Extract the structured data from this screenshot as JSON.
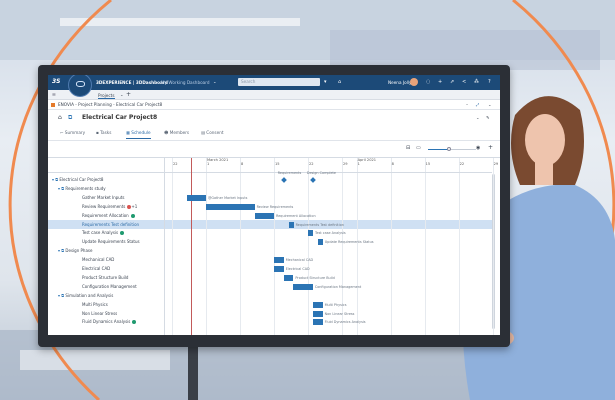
{
  "app": {
    "brand": "3DEXPERIENCE | 3DDashboard",
    "dashboard": "My Working Dashboard",
    "search_placeholder": "Search",
    "user": "Neena Jolly",
    "tab": "Projects",
    "breadcrumb": "ENOVIA - Project Planning - Electrical Car Project8",
    "title": "Electrical Car Project8",
    "tabs": [
      "Summary",
      "Tasks",
      "Schedule",
      "Members",
      "Consent"
    ],
    "active_tab": "Schedule",
    "accent": "#1c4a78",
    "bar_color": "#2b74b4"
  },
  "gantt": {
    "months": [
      {
        "label": "March 2021",
        "date": "2021-03-01"
      },
      {
        "label": "April 2021",
        "date": "2021-04-01"
      }
    ],
    "ticks": [
      {
        "label": "22",
        "date": "2021-02-22"
      },
      {
        "label": "1",
        "date": "2021-03-01"
      },
      {
        "label": "8",
        "date": "2021-03-08"
      },
      {
        "label": "15",
        "date": "2021-03-15"
      },
      {
        "label": "22",
        "date": "2021-03-22"
      },
      {
        "label": "29",
        "date": "2021-03-29"
      },
      {
        "label": "1",
        "date": "2021-04-01"
      },
      {
        "label": "8",
        "date": "2021-04-08"
      },
      {
        "label": "15",
        "date": "2021-04-15"
      },
      {
        "label": "22",
        "date": "2021-04-22"
      },
      {
        "label": "29",
        "date": "2021-04-29"
      }
    ],
    "today": "2021-02-26",
    "rows": [
      {
        "label": "Electrical Car Project8",
        "level": 0,
        "type": "group",
        "milestones": [
          {
            "label": "Requirements",
            "date": "2021-03-17"
          },
          {
            "label": "Design Complete",
            "date": "2021-03-23"
          }
        ]
      },
      {
        "label": "Requirements study",
        "level": 1,
        "type": "group"
      },
      {
        "label": "Gather Market Inputs",
        "level": 2,
        "start": "2021-02-25",
        "end": "2021-03-01",
        "bar_label": "@Gather Market Inputs"
      },
      {
        "label": "Review Requirements",
        "level": 2,
        "start": "2021-03-01",
        "end": "2021-03-11",
        "bar_label": "Review Requirements",
        "badge": "red",
        "badge_text": "+1"
      },
      {
        "label": "Requirement Allocation",
        "level": 2,
        "start": "2021-03-11",
        "end": "2021-03-15",
        "bar_label": "Requirement Allocation",
        "badge": "green"
      },
      {
        "label": "Requirements Test definition",
        "level": 2,
        "start": "2021-03-18",
        "end": "2021-03-19",
        "bar_label": "Requirements Test definition",
        "selected": true
      },
      {
        "label": "Test case Analysis",
        "level": 2,
        "start": "2021-03-22",
        "end": "2021-03-23",
        "bar_label": "Test case Analysis",
        "badge": "green"
      },
      {
        "label": "Update Requirements Status",
        "level": 2,
        "start": "2021-03-24",
        "end": "2021-03-25",
        "bar_label": "Update Requirements Status"
      },
      {
        "label": "Design Phase",
        "level": 1,
        "type": "group"
      },
      {
        "label": "Mechanical CAD",
        "level": 2,
        "start": "2021-03-15",
        "end": "2021-03-17",
        "bar_label": "Mechanical CAD"
      },
      {
        "label": "Electrical CAD",
        "level": 2,
        "start": "2021-03-15",
        "end": "2021-03-17",
        "bar_label": "Electrical CAD"
      },
      {
        "label": "Product Structure Build",
        "level": 2,
        "start": "2021-03-17",
        "end": "2021-03-19",
        "bar_label": "Product Structure Build"
      },
      {
        "label": "Configuration Management",
        "level": 2,
        "start": "2021-03-19",
        "end": "2021-03-23",
        "bar_label": "Configuration Management"
      },
      {
        "label": "Simulation and Analysis",
        "level": 1,
        "type": "group"
      },
      {
        "label": "Multi Physics",
        "level": 2,
        "start": "2021-03-23",
        "end": "2021-03-25",
        "bar_label": "Multi Physics"
      },
      {
        "label": "Non Linear Stress",
        "level": 2,
        "start": "2021-03-23",
        "end": "2021-03-25",
        "bar_label": "Non Linear Stress"
      },
      {
        "label": "Fluid Dynamics Analysis",
        "level": 2,
        "start": "2021-03-23",
        "end": "2021-03-25",
        "bar_label": "Fluid Dynamics Analysis",
        "badge": "green"
      }
    ]
  }
}
